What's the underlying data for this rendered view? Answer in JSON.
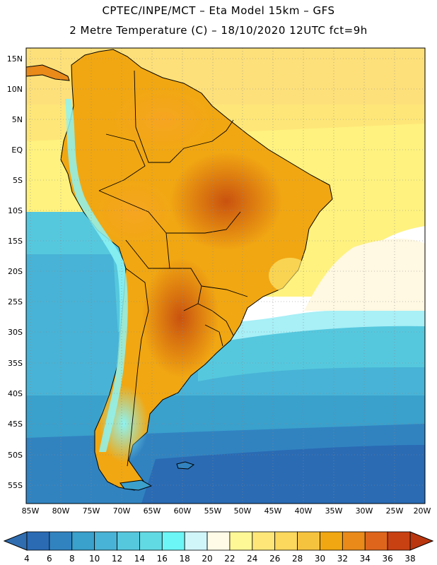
{
  "header": {
    "line1": "CPTEC/INPE/MCT –  Eta Model 15km – GFS",
    "line2": "2 Metre Temperature (C) – 18/10/2020 12UTC fct=9h"
  },
  "map": {
    "lat_labels": [
      "15N",
      "10N",
      "5N",
      "EQ",
      "5S",
      "10S",
      "15S",
      "20S",
      "25S",
      "30S",
      "35S",
      "40S",
      "45S",
      "50S",
      "55S"
    ],
    "lon_labels": [
      "85W",
      "80W",
      "75W",
      "70W",
      "65W",
      "60W",
      "55W",
      "50W",
      "45W",
      "40W",
      "35W",
      "30W",
      "25W",
      "20W"
    ],
    "lat_extent": [
      15,
      -56
    ],
    "lon_extent": [
      -85,
      -20
    ]
  },
  "legend": {
    "labels": [
      "4",
      "6",
      "8",
      "10",
      "12",
      "14",
      "16",
      "18",
      "20",
      "22",
      "24",
      "26",
      "28",
      "30",
      "32",
      "34",
      "36",
      "38"
    ],
    "colors": [
      "#2a6bb4",
      "#3183c0",
      "#3aa0cc",
      "#48b3d6",
      "#55c8de",
      "#62dae4",
      "#6cf6f6",
      "#d0f6fa",
      "#fffbe6",
      "#fff896",
      "#fee778",
      "#fcd85c",
      "#f6c33f",
      "#f1a712",
      "#e98a19",
      "#de661c",
      "#c84113"
    ],
    "low_color": "#2f6db0",
    "high_color": "#b9360f"
  }
}
